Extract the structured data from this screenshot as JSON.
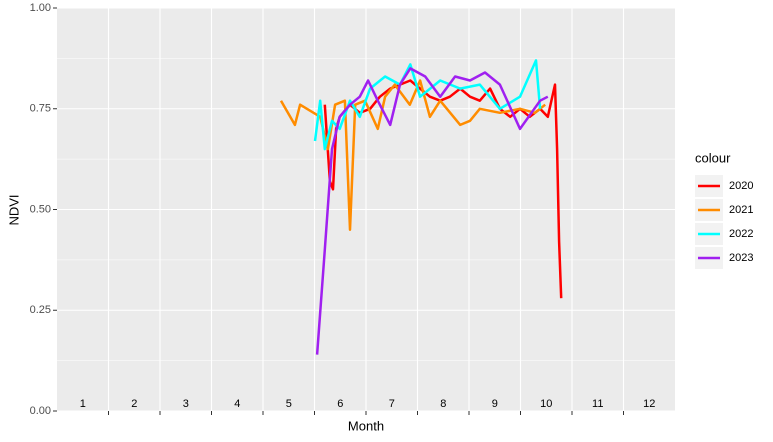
{
  "chart_data": {
    "type": "line",
    "xlabel": "Month",
    "ylabel": "NDVI",
    "legend_title": "colour",
    "month_labels": [
      "1",
      "2",
      "3",
      "4",
      "5",
      "6",
      "7",
      "8",
      "9",
      "10",
      "11",
      "12"
    ],
    "xlim": [
      1,
      13
    ],
    "xticks": [
      2,
      3,
      4,
      5,
      6,
      7,
      8,
      9,
      10,
      11,
      12
    ],
    "ylim": [
      0,
      1
    ],
    "yticks": [
      {
        "value": 0,
        "label": "0.00"
      },
      {
        "value": 0.25,
        "label": "0.25"
      },
      {
        "value": 0.5,
        "label": "0.50"
      },
      {
        "value": 0.75,
        "label": "0.75"
      },
      {
        "value": 1,
        "label": "1.00"
      }
    ],
    "grid": true,
    "legend": "right",
    "series": [
      {
        "name": "2020",
        "color": "#ff0000",
        "x": [
          6.2,
          6.3,
          6.36,
          6.42,
          6.49,
          6.69,
          6.88,
          7.08,
          7.27,
          7.47,
          7.66,
          7.86,
          8.05,
          8.24,
          8.44,
          8.63,
          8.83,
          9.02,
          9.21,
          9.41,
          9.6,
          9.8,
          9.99,
          10.18,
          10.38,
          10.53,
          10.67,
          10.71,
          10.75,
          10.79
        ],
        "values": [
          0.76,
          0.57,
          0.55,
          0.7,
          0.73,
          0.76,
          0.74,
          0.75,
          0.78,
          0.8,
          0.81,
          0.82,
          0.8,
          0.78,
          0.77,
          0.78,
          0.8,
          0.78,
          0.77,
          0.8,
          0.75,
          0.73,
          0.75,
          0.73,
          0.75,
          0.73,
          0.81,
          0.65,
          0.42,
          0.28
        ]
      },
      {
        "name": "2021",
        "color": "#ff8c00",
        "x": [
          5.35,
          5.62,
          5.72,
          6.11,
          6.26,
          6.4,
          6.59,
          6.69,
          6.79,
          6.98,
          7.23,
          7.37,
          7.56,
          7.85,
          8.05,
          8.24,
          8.44,
          8.83,
          9.02,
          9.21,
          9.6,
          9.99,
          10.28,
          10.48
        ],
        "values": [
          0.77,
          0.71,
          0.76,
          0.73,
          0.65,
          0.76,
          0.77,
          0.45,
          0.76,
          0.77,
          0.7,
          0.78,
          0.81,
          0.76,
          0.82,
          0.73,
          0.77,
          0.71,
          0.72,
          0.75,
          0.74,
          0.75,
          0.74,
          0.76
        ]
      },
      {
        "name": "2022",
        "color": "#00ffff",
        "x": [
          6.01,
          6.11,
          6.2,
          6.34,
          6.49,
          6.69,
          6.88,
          7.08,
          7.37,
          7.66,
          7.86,
          8.05,
          8.44,
          8.83,
          9.21,
          9.6,
          9.99,
          10.3,
          10.38
        ],
        "values": [
          0.67,
          0.77,
          0.65,
          0.72,
          0.7,
          0.77,
          0.73,
          0.8,
          0.83,
          0.81,
          0.86,
          0.78,
          0.82,
          0.8,
          0.81,
          0.75,
          0.78,
          0.87,
          0.75
        ]
      },
      {
        "name": "2023",
        "color": "#a020f0",
        "x": [
          6.05,
          6.2,
          6.34,
          6.49,
          6.69,
          6.88,
          7.04,
          7.23,
          7.47,
          7.66,
          7.86,
          8.15,
          8.44,
          8.73,
          9.02,
          9.31,
          9.6,
          9.99,
          10.38,
          10.53
        ],
        "values": [
          0.14,
          0.4,
          0.65,
          0.73,
          0.76,
          0.78,
          0.82,
          0.77,
          0.71,
          0.81,
          0.85,
          0.83,
          0.78,
          0.83,
          0.82,
          0.84,
          0.81,
          0.7,
          0.77,
          0.78
        ]
      }
    ]
  }
}
